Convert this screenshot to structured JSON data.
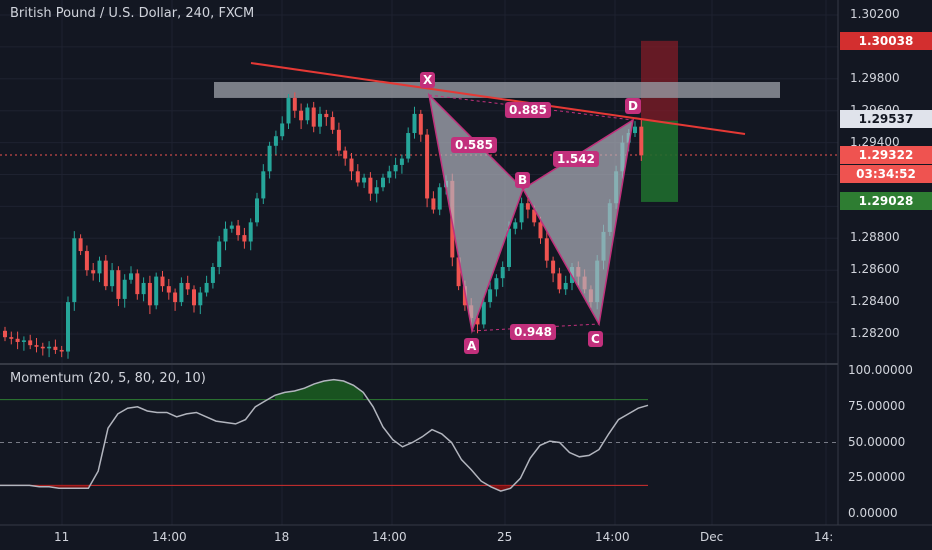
{
  "header": {
    "symbol_title": "British Pound / U.S. Dollar, 240, FXCM"
  },
  "oscillator": {
    "title": "Momentum (20, 5, 80, 20, 10)",
    "upper_band": 80,
    "lower_band": 20,
    "mid_band": 50,
    "ticks": [
      "100.00000",
      "75.00000",
      "50.00000",
      "25.00000",
      "0.00000"
    ]
  },
  "price_axis": {
    "ticks": [
      "1.30200",
      "1.29800",
      "1.29600",
      "1.29400",
      "1.28800",
      "1.28600",
      "1.28400",
      "1.28200"
    ]
  },
  "price_labels": {
    "stop": "1.30038",
    "current_trend": "1.29537",
    "last_price": "1.29322",
    "countdown": "03:34:52",
    "target": "1.29028"
  },
  "time_axis": {
    "labels": [
      "11",
      "14:00",
      "18",
      "14:00",
      "25",
      "14:00",
      "Dec",
      "14:"
    ]
  },
  "pattern": {
    "points": {
      "X": "X",
      "A": "A",
      "B": "B",
      "C": "C",
      "D": "D"
    },
    "ratios": {
      "xb": "0.585",
      "ac": "0.948",
      "bd": "1.542",
      "xd": "0.885"
    }
  },
  "colors": {
    "background": "#131722",
    "up": "#26a69a",
    "down": "#ef5350",
    "pattern": "#c2307c",
    "trendline": "#e53935",
    "stop_zone": "#7b1c27",
    "target_zone": "#1f6b2e"
  },
  "chart_data": {
    "type": "candlestick",
    "symbol": "British Pound / U.S. Dollar, 240, FXCM",
    "y_range": [
      1.281,
      1.3032
    ],
    "x_labels": [
      "11",
      "14:00",
      "18",
      "14:00",
      "25",
      "14:00",
      "Dec",
      "14:"
    ],
    "harmonic_pattern": {
      "X": 1.2972,
      "A": 1.2822,
      "B": 1.2909,
      "C": 1.2827,
      "D": 1.2954,
      "ratios": {
        "XB": 0.585,
        "AC": 0.948,
        "BD": 1.542,
        "XD": 0.885
      }
    },
    "resistance_zone": [
      1.2968,
      1.2978
    ],
    "trendline": [
      [
        0,
        1.299
      ],
      [
        1,
        1.2948
      ]
    ],
    "closes": [
      1.2818,
      1.2817,
      1.2815,
      1.2816,
      1.2813,
      1.2812,
      1.2811,
      1.2812,
      1.281,
      1.2809,
      1.284,
      1.288,
      1.2872,
      1.286,
      1.2858,
      1.2866,
      1.285,
      1.286,
      1.2842,
      1.2854,
      1.2858,
      1.2845,
      1.2852,
      1.2838,
      1.2856,
      1.285,
      1.2846,
      1.284,
      1.2852,
      1.2848,
      1.2838,
      1.2846,
      1.2852,
      1.2862,
      1.2878,
      1.2886,
      1.2888,
      1.2882,
      1.2878,
      1.289,
      1.2905,
      1.2922,
      1.2938,
      1.2944,
      1.2952,
      1.2968,
      1.296,
      1.2954,
      1.2962,
      1.295,
      1.2958,
      1.2956,
      1.2948,
      1.2935,
      1.293,
      1.2922,
      1.2915,
      1.2918,
      1.2908,
      1.2912,
      1.2918,
      1.2922,
      1.2926,
      1.293,
      1.2946,
      1.2958,
      1.2945,
      1.2905,
      1.2898,
      1.2912,
      1.2916,
      1.2868,
      1.285,
      1.2838,
      1.283,
      1.2826,
      1.284,
      1.2848,
      1.2855,
      1.2862,
      1.2886,
      1.289,
      1.2902,
      1.2898,
      1.289,
      1.288,
      1.2866,
      1.2858,
      1.2848,
      1.2852,
      1.2862,
      1.2856,
      1.2848,
      1.284,
      1.2866,
      1.2884,
      1.2902,
      1.2922,
      1.294,
      1.2946,
      1.295,
      1.2932
    ],
    "momentum": [
      20,
      20,
      20,
      20,
      19,
      19,
      18,
      18,
      18,
      18,
      30,
      60,
      70,
      74,
      75,
      72,
      71,
      71,
      68,
      70,
      71,
      68,
      65,
      64,
      63,
      66,
      75,
      79,
      83,
      85,
      86,
      88,
      91,
      93,
      94,
      93,
      90,
      85,
      75,
      61,
      52,
      47,
      50,
      54,
      59,
      56,
      50,
      38,
      31,
      23,
      19,
      16,
      18,
      25,
      39,
      48,
      51,
      50,
      43,
      40,
      41,
      45,
      56,
      66,
      70,
      74,
      76
    ]
  }
}
